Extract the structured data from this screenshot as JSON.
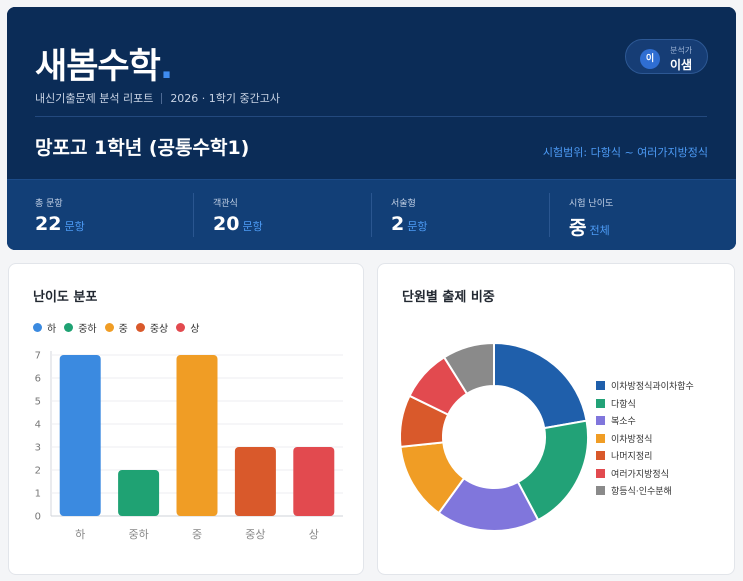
{
  "header": {
    "brand": "새봄수학",
    "brand_dot": ".",
    "report_type": "내신기출문제 분석 리포트",
    "exam_term": "2026 · 1학기 중간고사",
    "analyst": {
      "avatar": "이",
      "role": "분석가",
      "name": "이샘"
    },
    "school_line": "망포고 1학년 (공통수학1)",
    "exam_range": "시험범위: 다항식 ~ 여러가지방정식"
  },
  "stats": [
    {
      "label": "총 문항",
      "value": "22",
      "unit": "문항"
    },
    {
      "label": "객관식",
      "value": "20",
      "unit": "문항"
    },
    {
      "label": "서술형",
      "value": "2",
      "unit": "문항"
    },
    {
      "label": "시험 난이도",
      "value": "중",
      "unit": "전체"
    }
  ],
  "difficulty_card": {
    "title": "난이도 분포"
  },
  "unit_card": {
    "title": "단원별 출제 비중"
  },
  "chart_data": [
    {
      "type": "bar",
      "title": "난이도 분포",
      "categories": [
        "하",
        "중하",
        "중",
        "중상",
        "상"
      ],
      "values": [
        7,
        2,
        7,
        3,
        3
      ],
      "colors": [
        "#3b8ae0",
        "#1fa273",
        "#f09d25",
        "#d9592b",
        "#e24a4f"
      ],
      "legend": [
        "하",
        "중하",
        "중",
        "중상",
        "상"
      ],
      "legend_position": "top-left",
      "yticks": [
        0,
        1,
        2,
        3,
        4,
        5,
        6,
        7
      ],
      "ylim": [
        0,
        7
      ],
      "grid": true
    },
    {
      "type": "pie",
      "title": "단원별 출제 비중",
      "donut": true,
      "labels": [
        "이차방정식과이차함수",
        "다항식",
        "복소수",
        "이차방정식",
        "나머지정리",
        "여러가지방정식",
        "항등식·인수분해"
      ],
      "values": [
        5,
        4.5,
        4,
        3,
        2,
        2,
        2
      ],
      "colors": [
        "#1f5fab",
        "#22a277",
        "#8076dc",
        "#f09d25",
        "#d9592b",
        "#e24a4f",
        "#8a8a8a"
      ],
      "legend_position": "right"
    }
  ]
}
